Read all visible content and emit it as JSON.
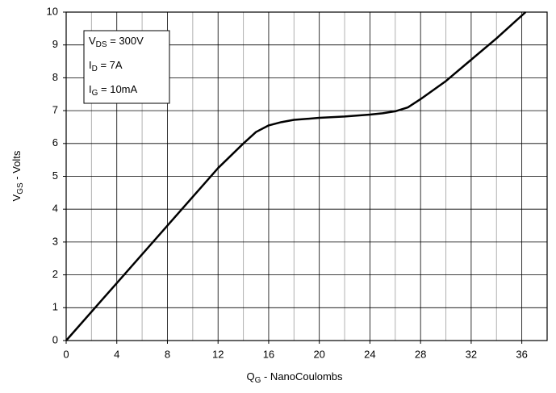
{
  "chart_data": {
    "type": "line",
    "x_label": {
      "main": "Q",
      "sub": "G",
      "rest": " - NanoCoulombs"
    },
    "y_label": {
      "main": "V",
      "sub": "GS",
      "rest": " - Volts"
    },
    "conditions": [
      {
        "main": "V",
        "sub": "DS",
        "rest": " = 300V"
      },
      {
        "main": "I",
        "sub": "D",
        "rest": " = 7A"
      },
      {
        "main": "I",
        "sub": "G",
        "rest": " = 10mA"
      }
    ],
    "x": [
      0,
      4,
      8,
      12,
      14,
      15,
      16,
      17,
      18,
      20,
      22,
      24,
      25,
      26,
      27,
      28,
      30,
      32,
      34,
      36.3
    ],
    "series": [
      {
        "color": "#000000",
        "values": [
          0,
          1.75,
          3.5,
          5.25,
          6.0,
          6.35,
          6.55,
          6.65,
          6.72,
          6.78,
          6.82,
          6.88,
          6.92,
          6.98,
          7.1,
          7.35,
          7.9,
          8.55,
          9.2,
          10
        ]
      }
    ],
    "xlim": [
      0,
      38
    ],
    "ylim": [
      0,
      10
    ],
    "xticks": [
      0,
      4,
      8,
      12,
      16,
      20,
      24,
      28,
      32,
      36
    ],
    "x_minor_grid": [
      2,
      6,
      10,
      14,
      18,
      22,
      26,
      30,
      34,
      38
    ],
    "yticks": [
      0,
      1,
      2,
      3,
      4,
      5,
      6,
      7,
      8,
      9,
      10
    ],
    "grid": true
  }
}
